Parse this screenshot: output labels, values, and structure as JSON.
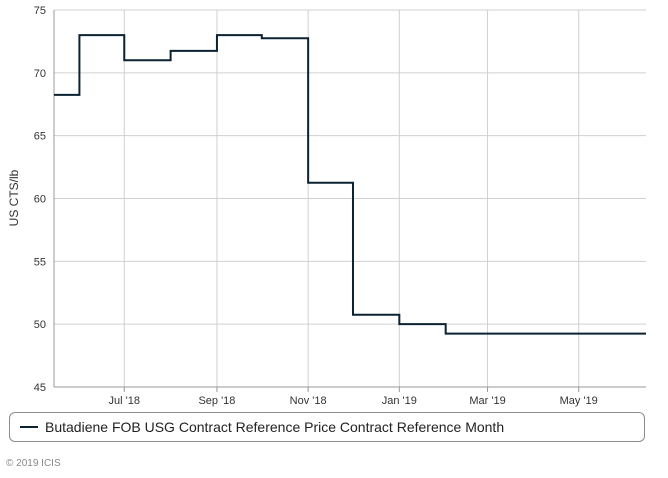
{
  "chart_data": {
    "type": "line",
    "step": true,
    "title": "",
    "xlabel": "",
    "ylabel": "US CTS/lb",
    "ylim": [
      45,
      75
    ],
    "yticks": [
      45,
      50,
      55,
      60,
      65,
      70,
      75
    ],
    "xlim": [
      "2018-05-15",
      "2019-06-15"
    ],
    "xticks": [
      {
        "date": "2018-07-01",
        "label": "Jul '18"
      },
      {
        "date": "2018-09-01",
        "label": "Sep '18"
      },
      {
        "date": "2018-11-01",
        "label": "Nov '18"
      },
      {
        "date": "2019-01-01",
        "label": "Jan '19"
      },
      {
        "date": "2019-03-01",
        "label": "Mar '19"
      },
      {
        "date": "2019-05-01",
        "label": "May '19"
      }
    ],
    "grid": true,
    "legend_position": "bottom",
    "series": [
      {
        "name": "Butadiene FOB USG Contract Reference Price Contract Reference Month",
        "color": "#0b2233",
        "x": [
          "2018-05-15",
          "2018-06-01",
          "2018-07-01",
          "2018-08-01",
          "2018-09-01",
          "2018-10-01",
          "2018-11-01",
          "2018-12-01",
          "2019-01-01",
          "2019-02-01",
          "2019-03-01",
          "2019-04-01",
          "2019-05-01",
          "2019-06-15"
        ],
        "y": [
          68.25,
          73.0,
          71.0,
          71.75,
          73.0,
          72.75,
          61.25,
          50.75,
          50.0,
          49.25,
          49.25,
          49.25,
          49.25,
          49.25
        ]
      }
    ]
  },
  "footer": {
    "copyright": "© 2019 ICIS"
  }
}
